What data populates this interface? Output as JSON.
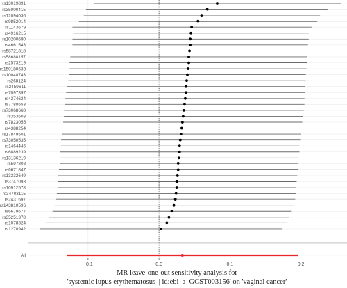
{
  "chart_data": {
    "type": "forest",
    "title": "MR leave-one-out sensitivity analysis for\n'systemic lupus erythematosus || id:ebi–a–GCST003156' on 'vaginal cancer'",
    "title_lines": [
      "MR leave-one-out sensitivity analysis for",
      "'systemic lupus erythematosus || id:ebi–a–GCST003156' on 'vaginal cancer'"
    ],
    "xlabel": "",
    "ylabel": "",
    "xlim": [
      -0.185,
      0.265
    ],
    "xticks": [
      -0.1,
      0.0,
      0.1,
      0.2
    ],
    "xtick_labels": [
      "−0.1",
      "0.0",
      "0.1",
      "0.2"
    ],
    "reference_line": 0,
    "grid": true,
    "colors": {
      "point": "#000000",
      "overall": "#e8262a",
      "ref_line": "#333333"
    },
    "snps": [
      {
        "label": "rs13019891",
        "estimate": 0.082,
        "ci_low": -0.092,
        "ci_high": 0.257
      },
      {
        "label": "rs35000415",
        "estimate": 0.068,
        "ci_low": -0.103,
        "ci_high": 0.238
      },
      {
        "label": "rs12094036",
        "estimate": 0.06,
        "ci_low": -0.106,
        "ci_high": 0.227
      },
      {
        "label": "rs9852014",
        "estimate": 0.055,
        "ci_low": -0.113,
        "ci_high": 0.223
      },
      {
        "label": "rs1143679",
        "estimate": 0.046,
        "ci_low": -0.122,
        "ci_high": 0.215
      },
      {
        "label": "rs4916215",
        "estimate": 0.045,
        "ci_low": -0.121,
        "ci_high": 0.211
      },
      {
        "label": "rs10200680",
        "estimate": 0.044,
        "ci_low": -0.122,
        "ci_high": 0.211
      },
      {
        "label": "rs4661543",
        "estimate": 0.044,
        "ci_low": -0.122,
        "ci_high": 0.21
      },
      {
        "label": "rs58721818",
        "estimate": 0.043,
        "ci_low": -0.124,
        "ci_high": 0.21
      },
      {
        "label": "rs58688157",
        "estimate": 0.042,
        "ci_low": -0.125,
        "ci_high": 0.209
      },
      {
        "label": "rs2573219",
        "estimate": 0.042,
        "ci_low": -0.126,
        "ci_high": 0.209
      },
      {
        "label": "rs150180633",
        "estimate": 0.041,
        "ci_low": -0.126,
        "ci_high": 0.208
      },
      {
        "label": "rs10048743",
        "estimate": 0.04,
        "ci_low": -0.127,
        "ci_high": 0.207
      },
      {
        "label": "rs268124",
        "estimate": 0.039,
        "ci_low": -0.128,
        "ci_high": 0.207
      },
      {
        "label": "rs2459611",
        "estimate": 0.038,
        "ci_low": -0.13,
        "ci_high": 0.206
      },
      {
        "label": "rs7097397",
        "estimate": 0.038,
        "ci_low": -0.131,
        "ci_high": 0.206
      },
      {
        "label": "rs4274624",
        "estimate": 0.037,
        "ci_low": -0.132,
        "ci_high": 0.205
      },
      {
        "label": "rs7788653",
        "estimate": 0.036,
        "ci_low": -0.133,
        "ci_high": 0.205
      },
      {
        "label": "rs73068668",
        "estimate": 0.035,
        "ci_low": -0.134,
        "ci_high": 0.204
      },
      {
        "label": "rs353608",
        "estimate": 0.034,
        "ci_low": -0.134,
        "ci_high": 0.203
      },
      {
        "label": "rs7823055",
        "estimate": 0.033,
        "ci_low": -0.135,
        "ci_high": 0.202
      },
      {
        "label": "rs4388254",
        "estimate": 0.032,
        "ci_low": -0.136,
        "ci_high": 0.201
      },
      {
        "label": "rs17849501",
        "estimate": 0.031,
        "ci_low": -0.137,
        "ci_high": 0.2
      },
      {
        "label": "rs73050535",
        "estimate": 0.03,
        "ci_low": -0.138,
        "ci_high": 0.199
      },
      {
        "label": "rs1464446",
        "estimate": 0.029,
        "ci_low": -0.138,
        "ci_high": 0.198
      },
      {
        "label": "rs6889239",
        "estimate": 0.029,
        "ci_low": -0.139,
        "ci_high": 0.198
      },
      {
        "label": "rs13136219",
        "estimate": 0.028,
        "ci_low": -0.14,
        "ci_high": 0.197
      },
      {
        "label": "rs597808",
        "estimate": 0.027,
        "ci_low": -0.14,
        "ci_high": 0.196
      },
      {
        "label": "rs6671847",
        "estimate": 0.027,
        "ci_low": -0.141,
        "ci_high": 0.196
      },
      {
        "label": "rs13332649",
        "estimate": 0.026,
        "ci_low": -0.142,
        "ci_high": 0.195
      },
      {
        "label": "rs3747093",
        "estimate": 0.025,
        "ci_low": -0.142,
        "ci_high": 0.194
      },
      {
        "label": "rs10912578",
        "estimate": 0.025,
        "ci_low": -0.143,
        "ci_high": 0.193
      },
      {
        "label": "rs34703115",
        "estimate": 0.024,
        "ci_low": -0.144,
        "ci_high": 0.193
      },
      {
        "label": "rs2431697",
        "estimate": 0.023,
        "ci_low": -0.145,
        "ci_high": 0.192
      },
      {
        "label": "rs143810596",
        "estimate": 0.021,
        "ci_low": -0.147,
        "ci_high": 0.19
      },
      {
        "label": "rs6679677",
        "estimate": 0.018,
        "ci_low": -0.15,
        "ci_high": 0.187
      },
      {
        "label": "rs35251378",
        "estimate": 0.014,
        "ci_low": -0.155,
        "ci_high": 0.183
      },
      {
        "label": "rs1078324",
        "estimate": 0.011,
        "ci_low": -0.16,
        "ci_high": 0.181
      },
      {
        "label": "rs1270942",
        "estimate": 0.003,
        "ci_low": -0.168,
        "ci_high": 0.173
      }
    ],
    "overall": {
      "label": "All",
      "estimate": 0.033,
      "ci_low": -0.13,
      "ci_high": 0.196
    }
  }
}
